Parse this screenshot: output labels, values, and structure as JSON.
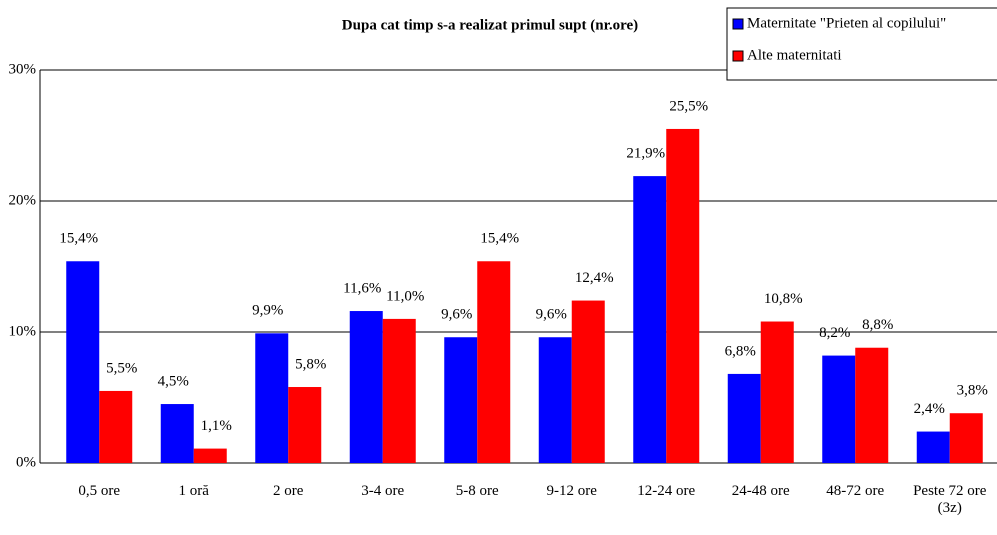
{
  "chart_data": {
    "type": "bar",
    "title": "Dupa cat timp s-a realizat primul supt (nr.ore)",
    "categories": [
      "0,5 ore",
      "1 oră",
      "2 ore",
      "3-4 ore",
      "5-8 ore",
      "9-12 ore",
      "12-24 ore",
      "24-48 ore",
      "48-72 ore",
      "Peste 72 ore (3z)"
    ],
    "series": [
      {
        "name": "Maternitate \"Prieten al copilului\"",
        "color": "#0000ff",
        "values": [
          15.4,
          4.5,
          9.9,
          11.6,
          9.6,
          9.6,
          21.9,
          6.8,
          8.2,
          2.4
        ],
        "value_labels": [
          "15,4%",
          "4,5%",
          "9,9%",
          "11,6%",
          "9,6%",
          "9,6%",
          "21,9%",
          "6,8%",
          "8,2%",
          "2,4%"
        ]
      },
      {
        "name": "Alte maternitati",
        "color": "#ff0000",
        "values": [
          5.5,
          1.1,
          5.8,
          11.0,
          15.4,
          12.4,
          25.5,
          10.8,
          8.8,
          3.8
        ],
        "value_labels": [
          "5,5%",
          "1,1%",
          "5,8%",
          "11,0%",
          "15,4%",
          "12,4%",
          "25,5%",
          "10,8%",
          "8,8%",
          "3,8%"
        ]
      }
    ],
    "ylim": [
      0,
      30
    ],
    "yticks": [
      {
        "value": 0,
        "label": "0%"
      },
      {
        "value": 10,
        "label": "10%"
      },
      {
        "value": 20,
        "label": "20%"
      },
      {
        "value": 30,
        "label": "30%"
      }
    ],
    "grid": true,
    "legend": "top-right"
  }
}
